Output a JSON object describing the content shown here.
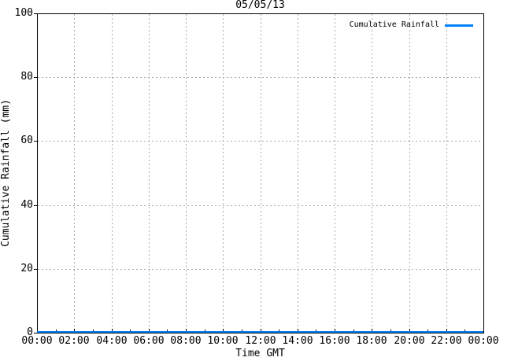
{
  "window": {
    "background": "#ffffff"
  },
  "chart_data": {
    "type": "line",
    "title": "05/05/13",
    "xlabel": "Time GMT",
    "ylabel": "Cumulative Rainfall (mm)",
    "ylim": [
      0,
      100
    ],
    "xlim_hours": [
      0,
      24
    ],
    "grid": true,
    "yticks": [
      0,
      20,
      40,
      60,
      80,
      100
    ],
    "xticks": [
      {
        "hour": 0,
        "label": "00:00"
      },
      {
        "hour": 2,
        "label": "02:00"
      },
      {
        "hour": 4,
        "label": "04:00"
      },
      {
        "hour": 6,
        "label": "06:00"
      },
      {
        "hour": 8,
        "label": "08:00"
      },
      {
        "hour": 10,
        "label": "10:00"
      },
      {
        "hour": 12,
        "label": "12:00"
      },
      {
        "hour": 14,
        "label": "14:00"
      },
      {
        "hour": 16,
        "label": "16:00"
      },
      {
        "hour": 18,
        "label": "18:00"
      },
      {
        "hour": 20,
        "label": "20:00"
      },
      {
        "hour": 22,
        "label": "22:00"
      },
      {
        "hour": 24,
        "label": "00:00"
      }
    ],
    "colors": {
      "line": "#0080ff",
      "grid": "#a9a9a9",
      "axis": "#000000",
      "text": "#000000",
      "background": "#ffffff"
    },
    "legend": {
      "position": "top-right-inside",
      "label": "Cumulative Rainfall"
    },
    "series": [
      {
        "name": "Cumulative Rainfall",
        "color": "#0080ff",
        "x_hours": [
          0,
          24
        ],
        "values": [
          0,
          0
        ]
      }
    ]
  }
}
